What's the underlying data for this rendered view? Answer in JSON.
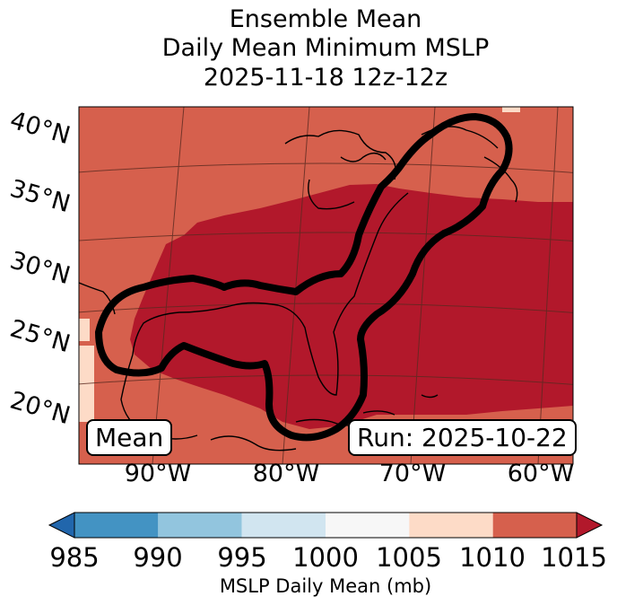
{
  "title": {
    "line1": "Ensemble Mean",
    "line2": "Daily Mean Minimum MSLP",
    "line3": "2025-11-18 12z-12z"
  },
  "map": {
    "lat_labels": [
      "40°N",
      "35°N",
      "30°N",
      "25°N",
      "20°N"
    ],
    "lon_labels": [
      "90°W",
      "80°W",
      "70°W",
      "60°W"
    ],
    "mean_label": "Mean",
    "run_label": "Run: 2025-10-22",
    "fill_low_region": "1010-1015 mb",
    "fill_background": "1010 mb",
    "contour_color": "#000000"
  },
  "colorbar": {
    "tick_labels": [
      "985",
      "990",
      "995",
      "1000",
      "1005",
      "1010",
      "1015"
    ],
    "colors": [
      "#4393c3",
      "#92c5de",
      "#d1e5f0",
      "#f7f7f7",
      "#fddbc7",
      "#d6604d",
      "#b2182b"
    ],
    "under_color": "#2166ac",
    "over_color": "#b2182b",
    "label": "MSLP Daily Mean (mb)"
  }
}
